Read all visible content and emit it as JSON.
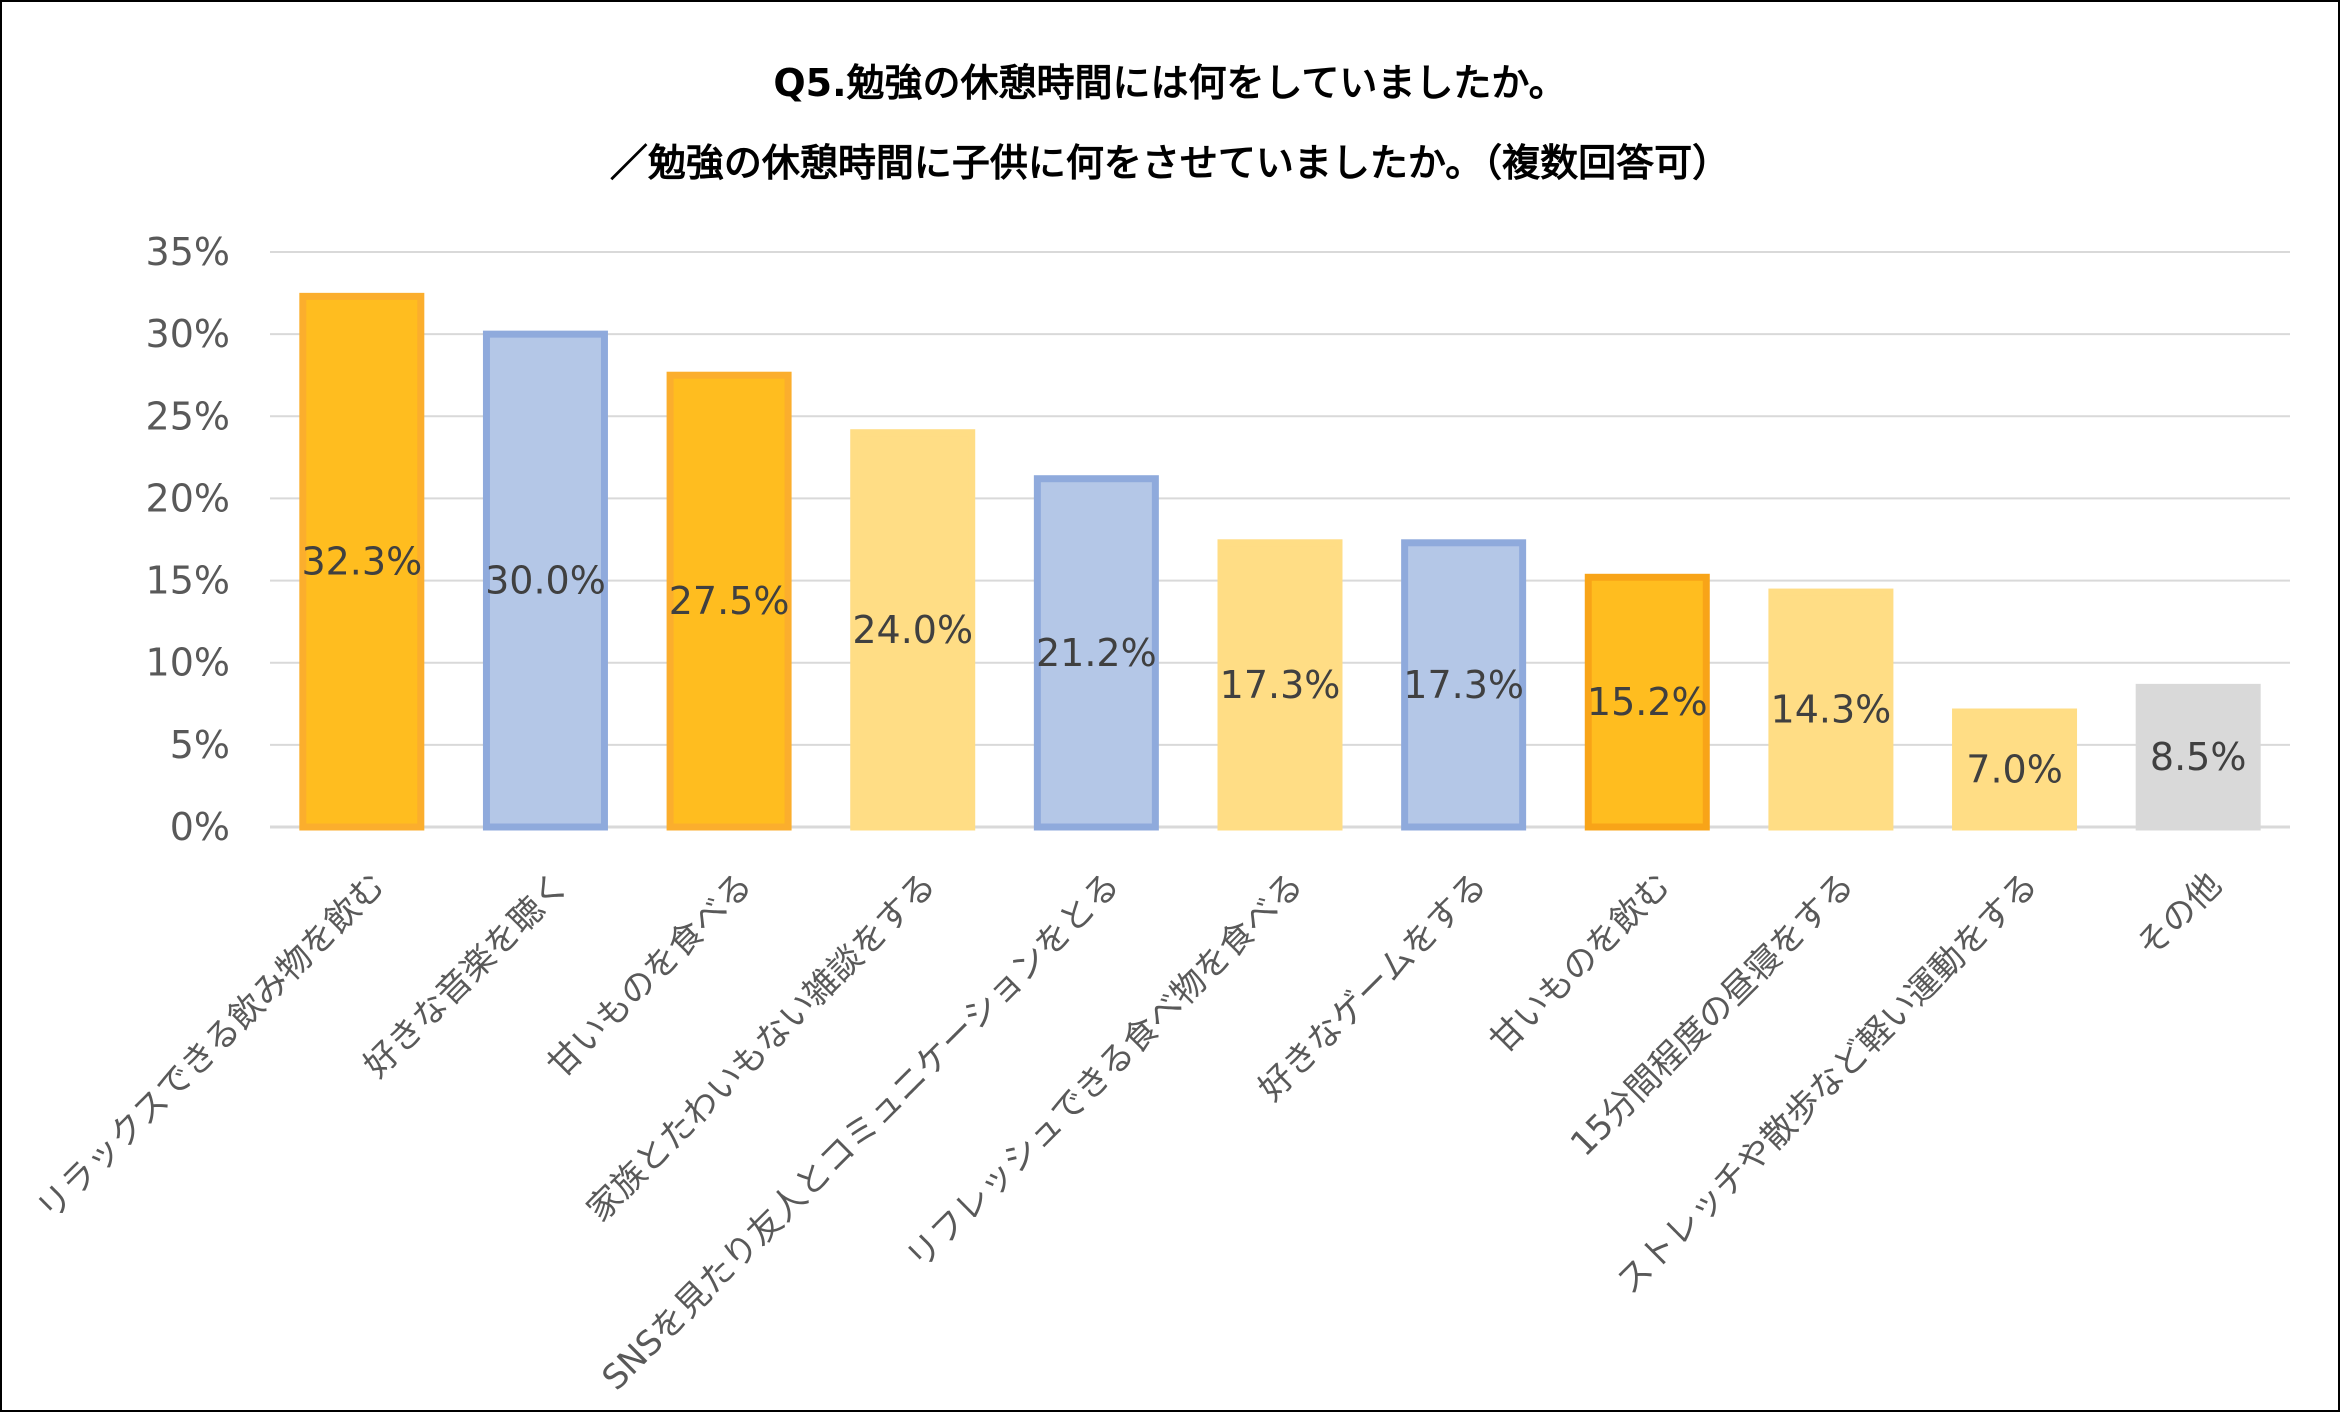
{
  "chart_data": {
    "type": "bar",
    "title": "Q5.勉強の休憩時間には何をしていましたか。",
    "subtitle": "／勉強の休憩時間に子供に何をさせていましたか。（複数回答可）",
    "xlabel": "",
    "ylabel": "",
    "ylim": [
      0,
      35
    ],
    "y_ticks": [
      "0%",
      "5%",
      "10%",
      "15%",
      "20%",
      "25%",
      "30%",
      "35%"
    ],
    "y_tick_values": [
      0,
      5,
      10,
      15,
      20,
      25,
      30,
      35
    ],
    "grid": true,
    "legend": "none",
    "categories": [
      "リラックスできる飲み物を飲む",
      "好きな音楽を聴く",
      "甘いものを食べる",
      "家族とたわいもない雑談をする",
      "SNSを見たり友人とコミュニケーションをとる",
      "リフレッシュできる食べ物を食べる",
      "好きなゲームをする",
      "甘いものを飲む",
      "15分間程度の昼寝をする",
      "ストレッチや散歩など軽い運動をする",
      "その他"
    ],
    "values": [
      32.3,
      30.0,
      27.5,
      24.0,
      21.2,
      17.3,
      17.3,
      15.2,
      14.3,
      7.0,
      8.5
    ],
    "value_labels": [
      "32.3%",
      "30.0%",
      "27.5%",
      "24.0%",
      "21.2%",
      "17.3%",
      "17.3%",
      "15.2%",
      "14.3%",
      "7.0%",
      "8.5%"
    ],
    "bar_fill": [
      "#FFBD1F",
      "#B4C7E7",
      "#FFBD1F",
      "#FFDD85",
      "#B4C7E7",
      "#FFDD85",
      "#B4C7E7",
      "#FFBD1F",
      "#FFDD85",
      "#FFDD85",
      "#D9D9D9"
    ],
    "bar_border": [
      "#FBAE2D",
      "#8FAADC",
      "#FBAE2D",
      "#FFDD85",
      "#8FAADC",
      "#FFDD85",
      "#8FAADC",
      "#F8A418",
      "#FFDD85",
      "#FFDD85",
      "#D9D9D9"
    ],
    "colors": {
      "gridline": "#D9D9D9",
      "tick_text": "#595959",
      "data_label_text": "#404040",
      "title_text": "#000000",
      "frame": "#000000"
    }
  }
}
